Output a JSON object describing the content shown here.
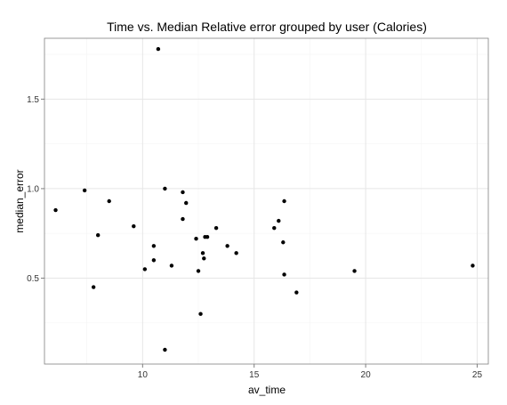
{
  "chart_data": {
    "type": "scatter",
    "title": "Time vs. Median Relative error grouped by user (Calories)",
    "xlabel": "av_time",
    "ylabel": "median_error",
    "xlim": [
      5.6,
      25.5
    ],
    "ylim": [
      0.02,
      1.84
    ],
    "xticks": [
      10,
      15,
      20,
      25
    ],
    "xtick_labels": [
      "10",
      "15",
      "20",
      "25"
    ],
    "yticks": [
      0.5,
      1.0,
      1.5
    ],
    "ytick_labels": [
      "0.5",
      "1.0",
      "1.5"
    ],
    "grid": true,
    "legend": "none",
    "points": [
      {
        "x": 6.1,
        "y": 0.88
      },
      {
        "x": 7.4,
        "y": 0.99
      },
      {
        "x": 7.8,
        "y": 0.45
      },
      {
        "x": 8.0,
        "y": 0.74
      },
      {
        "x": 8.5,
        "y": 0.93
      },
      {
        "x": 9.6,
        "y": 0.79
      },
      {
        "x": 10.1,
        "y": 0.55
      },
      {
        "x": 10.5,
        "y": 0.68
      },
      {
        "x": 10.5,
        "y": 0.6
      },
      {
        "x": 10.7,
        "y": 1.78
      },
      {
        "x": 11.0,
        "y": 1.0
      },
      {
        "x": 11.0,
        "y": 0.1
      },
      {
        "x": 11.3,
        "y": 0.57
      },
      {
        "x": 11.8,
        "y": 0.98
      },
      {
        "x": 11.8,
        "y": 0.83
      },
      {
        "x": 11.95,
        "y": 0.92
      },
      {
        "x": 12.4,
        "y": 0.72
      },
      {
        "x": 12.5,
        "y": 0.54
      },
      {
        "x": 12.6,
        "y": 0.3
      },
      {
        "x": 12.7,
        "y": 0.64
      },
      {
        "x": 12.75,
        "y": 0.61
      },
      {
        "x": 12.8,
        "y": 0.73
      },
      {
        "x": 12.9,
        "y": 0.73
      },
      {
        "x": 13.3,
        "y": 0.78
      },
      {
        "x": 13.8,
        "y": 0.68
      },
      {
        "x": 14.2,
        "y": 0.64
      },
      {
        "x": 15.9,
        "y": 0.78
      },
      {
        "x": 16.1,
        "y": 0.82
      },
      {
        "x": 16.3,
        "y": 0.7
      },
      {
        "x": 16.35,
        "y": 0.93
      },
      {
        "x": 16.35,
        "y": 0.52
      },
      {
        "x": 16.9,
        "y": 0.42
      },
      {
        "x": 19.5,
        "y": 0.54
      },
      {
        "x": 24.8,
        "y": 0.57
      }
    ]
  },
  "colors": {
    "background": "#ffffff",
    "panel_border": "#7f7f7f",
    "grid_major": "#e6e6e6",
    "grid_minor": "#f4f4f4",
    "point": "#000000",
    "tick": "#7f7f7f"
  }
}
